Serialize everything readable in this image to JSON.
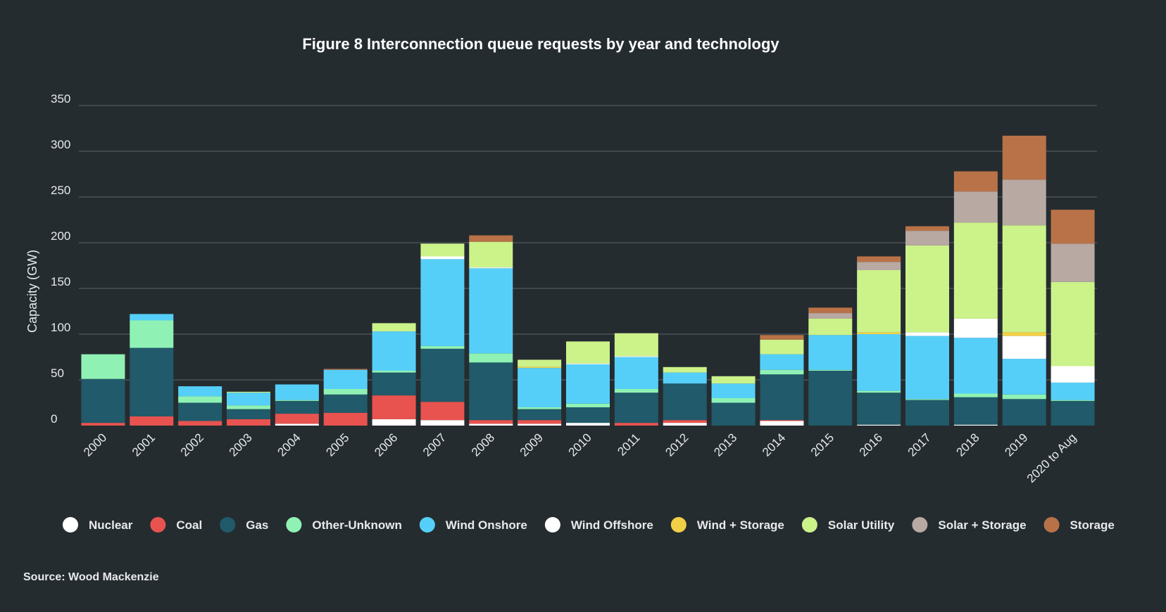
{
  "chart_data": {
    "type": "bar",
    "stacked": true,
    "title": "Figure 8 Interconnection queue requests by year and technology",
    "ylabel": "Capacity (GW)",
    "xlabel": "",
    "ylim": [
      0,
      350
    ],
    "yticks": [
      0,
      50,
      100,
      150,
      200,
      250,
      300,
      350
    ],
    "grid": true,
    "legend_position": "bottom",
    "source": "Source: Wood Mackenzie",
    "background": "#252c30",
    "categories": [
      "2000",
      "2001",
      "2002",
      "2003",
      "2004",
      "2005",
      "2006",
      "2007",
      "2008",
      "2009",
      "2010",
      "2011",
      "2012",
      "2013",
      "2014",
      "2015",
      "2016",
      "2017",
      "2018",
      "2019",
      "2020 to Aug"
    ],
    "series": [
      {
        "name": "Nuclear",
        "color": "#ffffff",
        "values": [
          0,
          0,
          0,
          0,
          2,
          0,
          7,
          6,
          2,
          2,
          3,
          0,
          3,
          0,
          5,
          0,
          1,
          0,
          1,
          0,
          0
        ]
      },
      {
        "name": "Coal",
        "color": "#e8534f",
        "values": [
          3,
          10,
          5,
          7,
          11,
          14,
          26,
          20,
          4,
          4,
          0,
          3,
          3,
          0,
          1,
          0,
          0,
          0,
          0,
          0,
          0
        ]
      },
      {
        "name": "Gas",
        "color": "#215a6a",
        "values": [
          48,
          75,
          20,
          11,
          14,
          20,
          25,
          58,
          63,
          12,
          17,
          33,
          40,
          25,
          50,
          60,
          35,
          28,
          30,
          29,
          27
        ]
      },
      {
        "name": "Other-Unknown",
        "color": "#8ff2b4",
        "values": [
          27,
          30,
          7,
          4,
          1,
          6,
          2,
          3,
          10,
          2,
          4,
          4,
          0,
          5,
          5,
          1,
          2,
          1,
          4,
          5,
          1
        ]
      },
      {
        "name": "Wind Onshore",
        "color": "#56cff8",
        "values": [
          0,
          7,
          11,
          14,
          17,
          21,
          43,
          95,
          93,
          43,
          43,
          35,
          12,
          16,
          17,
          38,
          62,
          69,
          61,
          39,
          19
        ]
      },
      {
        "name": "Wind Offshore",
        "color": "#ffffff",
        "values": [
          0,
          0,
          0,
          0,
          0,
          0,
          0,
          3,
          1,
          0,
          1,
          1,
          0,
          0,
          0,
          0,
          0,
          4,
          21,
          25,
          18
        ]
      },
      {
        "name": "Wind + Storage",
        "color": "#f2d046",
        "values": [
          0,
          0,
          0,
          0,
          0,
          0,
          0,
          0,
          0,
          1,
          0,
          0,
          0,
          0,
          0,
          0,
          2,
          0,
          0,
          4,
          0
        ]
      },
      {
        "name": "Solar Utility",
        "color": "#ccf28a",
        "values": [
          0,
          0,
          0,
          1,
          0,
          0,
          9,
          14,
          28,
          8,
          24,
          25,
          6,
          8,
          16,
          18,
          68,
          95,
          105,
          117,
          92
        ]
      },
      {
        "name": "Solar + Storage",
        "color": "#b8a9a2",
        "values": [
          0,
          0,
          0,
          0,
          0,
          0,
          0,
          0,
          0,
          0,
          0,
          0,
          0,
          0,
          0,
          6,
          9,
          16,
          34,
          50,
          42
        ]
      },
      {
        "name": "Storage",
        "color": "#b97248",
        "values": [
          0,
          0,
          0,
          0,
          0,
          1,
          0,
          0,
          7,
          0,
          0,
          0,
          0,
          0,
          5,
          6,
          6,
          5,
          22,
          48,
          37
        ]
      }
    ]
  }
}
